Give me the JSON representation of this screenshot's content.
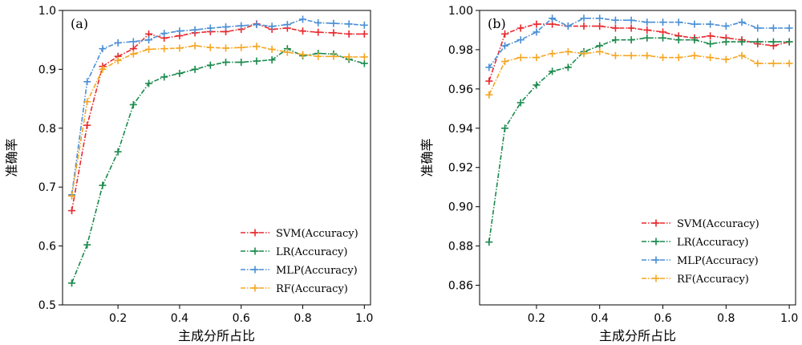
{
  "chart_data": [
    {
      "type": "line",
      "panel_label": "(a)",
      "xlabel": "主成分所占比",
      "ylabel": "准确率",
      "xlim": [
        0.02,
        1.02
      ],
      "ylim": [
        0.5,
        1.0
      ],
      "xticks": [
        0.2,
        0.4,
        0.6,
        0.8,
        1.0
      ],
      "xtick_labels": [
        "0.2",
        "0.4",
        "0.6",
        "0.8",
        "1.0"
      ],
      "yticks": [
        0.5,
        0.6,
        0.7,
        0.8,
        0.9,
        1.0
      ],
      "ytick_labels": [
        "0.5",
        "0.6",
        "0.7",
        "0.8",
        "0.9",
        "1.0"
      ],
      "legend_position": "bottom-right",
      "x": [
        0.05,
        0.1,
        0.15,
        0.2,
        0.25,
        0.3,
        0.35,
        0.4,
        0.45,
        0.5,
        0.55,
        0.6,
        0.65,
        0.7,
        0.75,
        0.8,
        0.85,
        0.9,
        0.95,
        1.0
      ],
      "series": [
        {
          "name": "SVM(Accuracy)",
          "color": "#e8292e",
          "dash": "6,2,1.5,2",
          "values": [
            0.66,
            0.805,
            0.905,
            0.922,
            0.935,
            0.96,
            0.953,
            0.957,
            0.962,
            0.964,
            0.964,
            0.968,
            0.977,
            0.968,
            0.97,
            0.965,
            0.963,
            0.962,
            0.96,
            0.96
          ]
        },
        {
          "name": "LR(Accuracy)",
          "color": "#1a8a4c",
          "dash": "6,2,1.5,2",
          "values": [
            0.537,
            0.602,
            0.703,
            0.76,
            0.84,
            0.876,
            0.887,
            0.893,
            0.9,
            0.907,
            0.912,
            0.912,
            0.914,
            0.916,
            0.935,
            0.923,
            0.927,
            0.926,
            0.917,
            0.91
          ]
        },
        {
          "name": "MLP(Accuracy)",
          "color": "#4a8fd4",
          "dash": "6,2,1.5,2",
          "values": [
            0.687,
            0.879,
            0.935,
            0.945,
            0.947,
            0.95,
            0.961,
            0.965,
            0.967,
            0.97,
            0.972,
            0.974,
            0.976,
            0.973,
            0.976,
            0.985,
            0.979,
            0.978,
            0.977,
            0.975
          ]
        },
        {
          "name": "RF(Accuracy)",
          "color": "#f5a623",
          "dash": "6,2,1.5,2",
          "values": [
            0.685,
            0.845,
            0.9,
            0.915,
            0.926,
            0.934,
            0.935,
            0.936,
            0.94,
            0.937,
            0.936,
            0.937,
            0.939,
            0.934,
            0.929,
            0.925,
            0.922,
            0.922,
            0.921,
            0.921
          ]
        }
      ]
    },
    {
      "type": "line",
      "panel_label": "(b)",
      "xlabel": "主成分所占比",
      "ylabel": "准确率",
      "xlim": [
        0.02,
        1.02
      ],
      "ylim": [
        0.85,
        1.0
      ],
      "xticks": [
        0.2,
        0.4,
        0.6,
        0.8,
        1.0
      ],
      "xtick_labels": [
        "0.2",
        "0.4",
        "0.6",
        "0.8",
        "1.0"
      ],
      "yticks": [
        0.86,
        0.88,
        0.9,
        0.92,
        0.94,
        0.96,
        0.98,
        1.0
      ],
      "ytick_labels": [
        "0.86",
        "0.88",
        "0.90",
        "0.92",
        "0.94",
        "0.96",
        "0.98",
        "1.00"
      ],
      "legend_position": "bottom-right",
      "x": [
        0.05,
        0.1,
        0.15,
        0.2,
        0.25,
        0.3,
        0.35,
        0.4,
        0.45,
        0.5,
        0.55,
        0.6,
        0.65,
        0.7,
        0.75,
        0.8,
        0.85,
        0.9,
        0.95,
        1.0
      ],
      "series": [
        {
          "name": "SVM(Accuracy)",
          "color": "#e8292e",
          "dash": "6,2,1.5,2",
          "values": [
            0.964,
            0.988,
            0.991,
            0.993,
            0.993,
            0.992,
            0.992,
            0.992,
            0.991,
            0.991,
            0.99,
            0.989,
            0.987,
            0.986,
            0.987,
            0.986,
            0.985,
            0.983,
            0.982,
            0.984
          ]
        },
        {
          "name": "LR(Accuracy)",
          "color": "#1a8a4c",
          "dash": "6,2,1.5,2",
          "values": [
            0.882,
            0.94,
            0.953,
            0.962,
            0.969,
            0.971,
            0.979,
            0.982,
            0.985,
            0.985,
            0.986,
            0.986,
            0.985,
            0.985,
            0.983,
            0.984,
            0.984,
            0.984,
            0.984,
            0.984
          ]
        },
        {
          "name": "MLP(Accuracy)",
          "color": "#4a8fd4",
          "dash": "6,2,1.5,2",
          "values": [
            0.971,
            0.982,
            0.985,
            0.989,
            0.996,
            0.992,
            0.996,
            0.996,
            0.995,
            0.995,
            0.994,
            0.994,
            0.994,
            0.993,
            0.993,
            0.992,
            0.994,
            0.991,
            0.991,
            0.991
          ]
        },
        {
          "name": "RF(Accuracy)",
          "color": "#f5a623",
          "dash": "6,2,1.5,2",
          "values": [
            0.957,
            0.974,
            0.976,
            0.976,
            0.978,
            0.979,
            0.978,
            0.979,
            0.977,
            0.977,
            0.977,
            0.976,
            0.976,
            0.977,
            0.976,
            0.975,
            0.977,
            0.973,
            0.973,
            0.973
          ]
        }
      ]
    }
  ]
}
